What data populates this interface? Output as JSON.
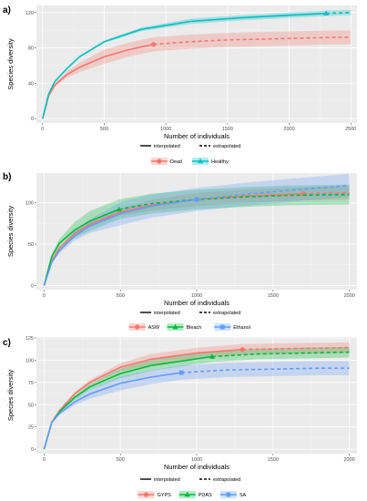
{
  "chart_data": [
    {
      "type": "line",
      "panel_label": "a)",
      "xlabel": "Number of individuals",
      "ylabel": "Species diversity",
      "xlim": [
        -50,
        2550
      ],
      "ylim": [
        -5,
        128
      ],
      "xticks": [
        0,
        500,
        1000,
        1500,
        2000,
        2500
      ],
      "yticks": [
        0,
        40,
        80,
        120
      ],
      "grid": true,
      "method_legend": {
        "interpolated": "interpolated",
        "extrapolated": "extrapolated"
      },
      "series": [
        {
          "name": "Dead",
          "color": "#F8766D",
          "marker": "circle",
          "observed": {
            "x": 900,
            "y": 84
          },
          "band": 8,
          "x": [
            0,
            50,
            100,
            200,
            300,
            500,
            700,
            900,
            1200,
            1500,
            1800,
            2100,
            2400,
            2500
          ],
          "y": [
            0,
            26,
            38,
            50,
            58,
            70,
            78,
            84,
            87,
            89,
            90,
            91,
            92,
            92
          ]
        },
        {
          "name": "Healthy",
          "color": "#00BFC4",
          "marker": "triangle",
          "observed": {
            "x": 2300,
            "y": 119
          },
          "band": 3,
          "x": [
            0,
            50,
            100,
            200,
            300,
            500,
            800,
            1200,
            1600,
            2000,
            2300,
            2500
          ],
          "y": [
            0,
            28,
            42,
            57,
            70,
            87,
            101,
            110,
            114,
            117,
            119,
            120
          ]
        }
      ]
    },
    {
      "type": "line",
      "panel_label": "b)",
      "xlabel": "Number of individuals",
      "ylabel": "Species diversity",
      "xlim": [
        -50,
        2050
      ],
      "ylim": [
        -5,
        136
      ],
      "xticks": [
        0,
        500,
        1000,
        1500,
        2000
      ],
      "yticks": [
        0,
        50,
        100
      ],
      "grid": true,
      "method_legend": {
        "interpolated": "interpolated",
        "extrapolated": "extrapolated"
      },
      "series": [
        {
          "name": "ASW",
          "color": "#F8766D",
          "marker": "circle",
          "observed": {
            "x": 1700,
            "y": 111
          },
          "band": 8,
          "x": [
            0,
            50,
            100,
            200,
            300,
            500,
            700,
            1000,
            1300,
            1700,
            2000
          ],
          "y": [
            0,
            30,
            45,
            63,
            74,
            89,
            97,
            104,
            108,
            111,
            112
          ]
        },
        {
          "name": "Bleach",
          "color": "#00BA38",
          "marker": "triangle",
          "observed": {
            "x": 490,
            "y": 92
          },
          "band": 12,
          "x": [
            0,
            50,
            100,
            200,
            300,
            490,
            700,
            1000,
            1300,
            1600,
            2000
          ],
          "y": [
            0,
            35,
            51,
            67,
            78,
            92,
            99,
            104,
            107,
            109,
            110
          ]
        },
        {
          "name": "Ethanol",
          "color": "#619CFF",
          "marker": "square",
          "observed": {
            "x": 1000,
            "y": 104
          },
          "band": 14,
          "x": [
            0,
            50,
            100,
            200,
            300,
            500,
            700,
            1000,
            1300,
            1600,
            2000
          ],
          "y": [
            0,
            28,
            42,
            60,
            72,
            87,
            96,
            104,
            110,
            115,
            121
          ]
        }
      ]
    },
    {
      "type": "line",
      "panel_label": "c)",
      "xlabel": "Number of individuals",
      "ylabel": "Species diversity",
      "xlim": [
        -50,
        2050
      ],
      "ylim": [
        -5,
        126
      ],
      "xticks": [
        0,
        500,
        1000,
        1500,
        2000
      ],
      "yticks": [
        0,
        25,
        50,
        75,
        100,
        125
      ],
      "grid": true,
      "method_legend": {
        "interpolated": "interpolated",
        "extrapolated": "extrapolated"
      },
      "series": [
        {
          "name": "GYPS",
          "color": "#F8766D",
          "marker": "circle",
          "observed": {
            "x": 1300,
            "y": 112
          },
          "band": 6,
          "x": [
            0,
            50,
            100,
            200,
            300,
            500,
            700,
            1000,
            1300,
            1600,
            2000
          ],
          "y": [
            0,
            30,
            43,
            62,
            75,
            92,
            101,
            108,
            112,
            113,
            114
          ]
        },
        {
          "name": "PDAS",
          "color": "#00BA38",
          "marker": "triangle",
          "observed": {
            "x": 1100,
            "y": 104
          },
          "band": 6,
          "x": [
            0,
            50,
            100,
            200,
            300,
            500,
            700,
            1100,
            1400,
            1700,
            2000
          ],
          "y": [
            0,
            30,
            42,
            58,
            70,
            85,
            94,
            104,
            107,
            108,
            109
          ]
        },
        {
          "name": "SA",
          "color": "#619CFF",
          "marker": "square",
          "observed": {
            "x": 900,
            "y": 86
          },
          "band": 8,
          "x": [
            0,
            50,
            100,
            200,
            300,
            500,
            700,
            900,
            1200,
            1500,
            1800,
            2000
          ],
          "y": [
            0,
            30,
            40,
            53,
            62,
            74,
            81,
            86,
            89,
            90,
            91,
            91
          ]
        }
      ]
    }
  ]
}
